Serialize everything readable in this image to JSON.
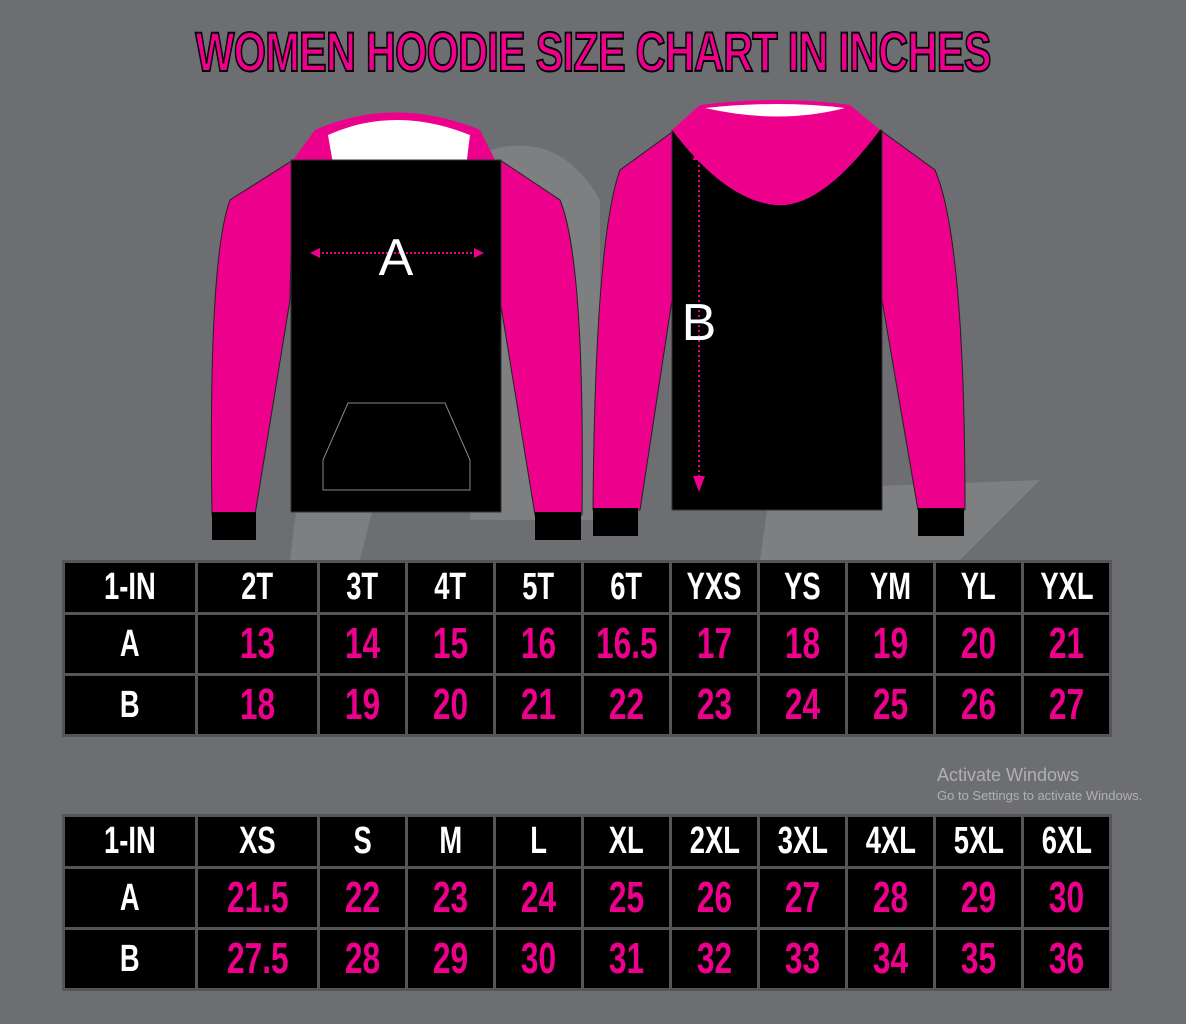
{
  "title": "WOMEN HOODIE SIZE CHART IN INCHES",
  "diagram": {
    "front_label": "A",
    "back_label": "B"
  },
  "colors": {
    "accent": "#ec008c",
    "background": "#6d6e71",
    "cell": "#000000"
  },
  "tables": [
    {
      "header": [
        "1-IN",
        "2T",
        "3T",
        "4T",
        "5T",
        "6T",
        "YXS",
        "YS",
        "YM",
        "YL",
        "YXL"
      ],
      "rows": [
        {
          "label": "A",
          "values": [
            "13",
            "14",
            "15",
            "16",
            "16.5",
            "17",
            "18",
            "19",
            "20",
            "21"
          ]
        },
        {
          "label": "B",
          "values": [
            "18",
            "19",
            "20",
            "21",
            "22",
            "23",
            "24",
            "25",
            "26",
            "27"
          ]
        }
      ]
    },
    {
      "header": [
        "1-IN",
        "XS",
        "S",
        "M",
        "L",
        "XL",
        "2XL",
        "3XL",
        "4XL",
        "5XL",
        "6XL"
      ],
      "rows": [
        {
          "label": "A",
          "values": [
            "21.5",
            "22",
            "23",
            "24",
            "25",
            "26",
            "27",
            "28",
            "29",
            "30"
          ]
        },
        {
          "label": "B",
          "values": [
            "27.5",
            "28",
            "29",
            "30",
            "31",
            "32",
            "33",
            "34",
            "35",
            "36"
          ]
        }
      ]
    }
  ],
  "watermark": {
    "line1": "Activate Windows",
    "line2": "Go to Settings to activate Windows."
  }
}
